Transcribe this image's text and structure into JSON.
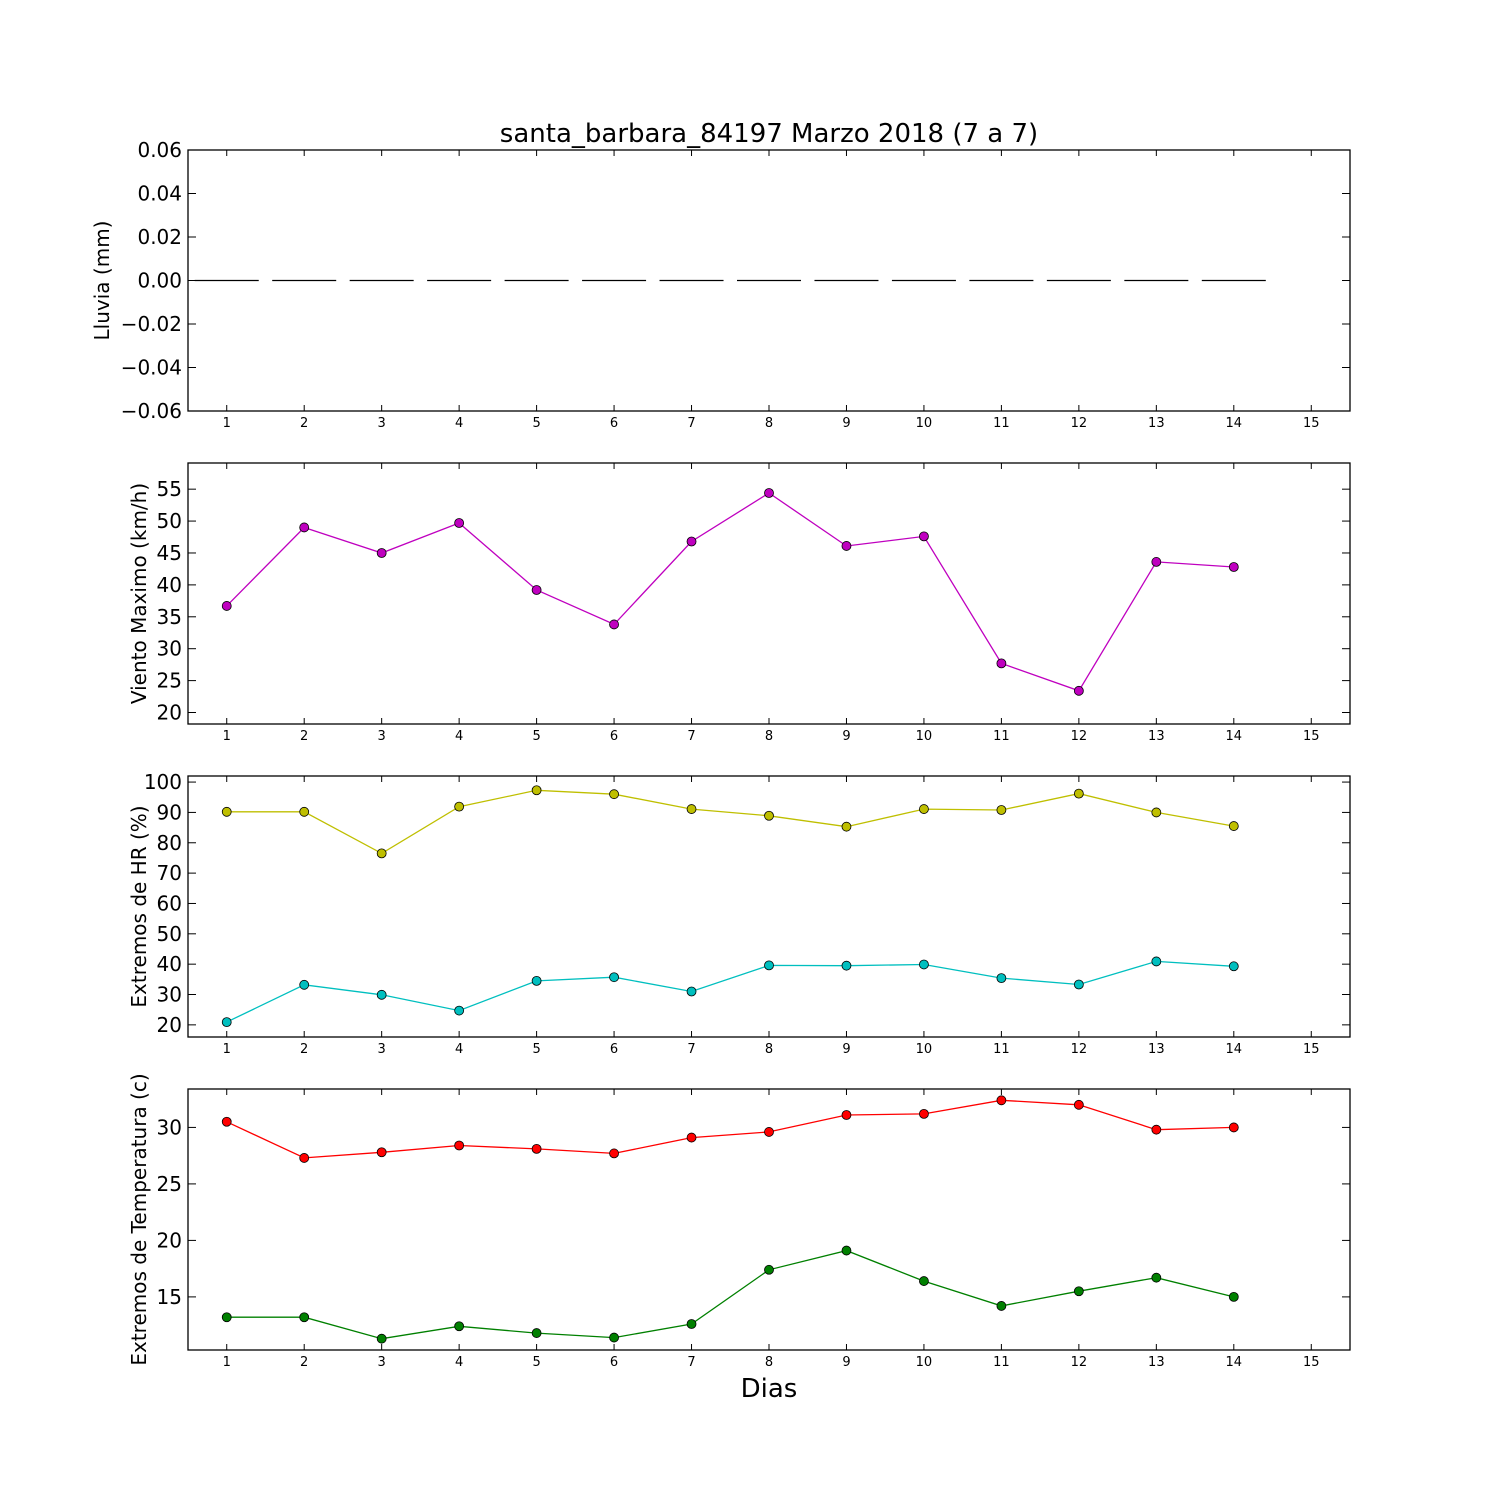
{
  "chart_data": [
    {
      "type": "line",
      "id": "lluvia",
      "title": "santa_barbara_84197 Marzo 2018  (7 a 7)",
      "ylabel": "Lluvia (mm)",
      "xlabel": "",
      "xlim": [
        0.5,
        15.5
      ],
      "ylim": [
        -0.06,
        0.06
      ],
      "yticks": [
        0.06,
        0.04,
        0.02,
        0.0,
        -0.02,
        -0.04,
        -0.06
      ],
      "ytick_labels": [
        "0.06",
        "0.04",
        "0.02",
        "0.00",
        "−0.02",
        "−0.04",
        "−0.06"
      ],
      "xticks": [
        "1",
        "2",
        "3",
        "4",
        "5",
        "6",
        "7",
        "8",
        "9",
        "10",
        "11",
        "12",
        "13",
        "14",
        "15"
      ],
      "style": "bars-zero",
      "series": [
        {
          "color": "#000000",
          "x": [
            1,
            2,
            3,
            4,
            5,
            6,
            7,
            8,
            9,
            10,
            11,
            12,
            13,
            14
          ],
          "values": [
            0,
            0,
            0,
            0,
            0,
            0,
            0,
            0,
            0,
            0,
            0,
            0,
            0,
            0
          ]
        }
      ]
    },
    {
      "type": "line",
      "id": "viento",
      "ylabel": "Viento Maximo (km/h)",
      "xlabel": "",
      "xlim": [
        0.5,
        15.5
      ],
      "ylim": [
        18.2,
        59.1
      ],
      "yticks": [
        20,
        25,
        30,
        35,
        40,
        45,
        50,
        55
      ],
      "ytick_labels": [
        "20",
        "25",
        "30",
        "35",
        "40",
        "45",
        "50",
        "55"
      ],
      "xticks": [
        "1",
        "2",
        "3",
        "4",
        "5",
        "6",
        "7",
        "8",
        "9",
        "10",
        "11",
        "12",
        "13",
        "14",
        "15"
      ],
      "series": [
        {
          "color": "#bf00bf",
          "x": [
            1,
            2,
            3,
            4,
            5,
            6,
            7,
            8,
            9,
            10,
            11,
            12,
            13,
            14
          ],
          "values": [
            36.7,
            49.0,
            45.0,
            49.7,
            39.2,
            33.8,
            46.8,
            54.4,
            46.1,
            47.6,
            27.7,
            23.4,
            43.6,
            42.8
          ]
        }
      ]
    },
    {
      "type": "line",
      "id": "hr",
      "ylabel": "Extremos de HR (%)",
      "xlabel": "",
      "xlim": [
        0.5,
        15.5
      ],
      "ylim": [
        16,
        102
      ],
      "yticks": [
        20,
        30,
        40,
        50,
        60,
        70,
        80,
        90,
        100
      ],
      "ytick_labels": [
        "20",
        "30",
        "40",
        "50",
        "60",
        "70",
        "80",
        "90",
        "100"
      ],
      "xticks": [
        "1",
        "2",
        "3",
        "4",
        "5",
        "6",
        "7",
        "8",
        "9",
        "10",
        "11",
        "12",
        "13",
        "14",
        "15"
      ],
      "series": [
        {
          "color": "#bfbf00",
          "x": [
            1,
            2,
            3,
            4,
            5,
            6,
            7,
            8,
            9,
            10,
            11,
            12,
            13,
            14
          ],
          "values": [
            90.2,
            90.2,
            76.5,
            91.9,
            97.3,
            96.0,
            91.1,
            88.9,
            85.3,
            91.1,
            90.8,
            96.2,
            90.0,
            85.5
          ]
        },
        {
          "color": "#00bfbf",
          "x": [
            1,
            2,
            3,
            4,
            5,
            6,
            7,
            8,
            9,
            10,
            11,
            12,
            13,
            14
          ],
          "values": [
            20.9,
            33.2,
            29.9,
            24.7,
            34.5,
            35.7,
            31.0,
            39.6,
            39.5,
            39.9,
            35.4,
            33.3,
            40.9,
            39.3
          ]
        }
      ]
    },
    {
      "type": "line",
      "id": "temperatura",
      "ylabel": "Extremos de Temperatura (c)",
      "xlabel": "Dias",
      "xlim": [
        0.5,
        15.5
      ],
      "ylim": [
        10.3,
        33.4
      ],
      "yticks": [
        15,
        20,
        25,
        30
      ],
      "ytick_labels": [
        "15",
        "20",
        "25",
        "30"
      ],
      "xticks": [
        "1",
        "2",
        "3",
        "4",
        "5",
        "6",
        "7",
        "8",
        "9",
        "10",
        "11",
        "12",
        "13",
        "14",
        "15"
      ],
      "series": [
        {
          "color": "#ff0000",
          "x": [
            1,
            2,
            3,
            4,
            5,
            6,
            7,
            8,
            9,
            10,
            11,
            12,
            13,
            14
          ],
          "values": [
            30.5,
            27.3,
            27.8,
            28.4,
            28.1,
            27.7,
            29.1,
            29.6,
            31.1,
            31.2,
            32.4,
            32.0,
            29.8,
            30.0
          ]
        },
        {
          "color": "#008000",
          "x": [
            1,
            2,
            3,
            4,
            5,
            6,
            7,
            8,
            9,
            10,
            11,
            12,
            13,
            14
          ],
          "values": [
            13.2,
            13.2,
            11.3,
            12.4,
            11.8,
            11.4,
            12.6,
            17.4,
            19.1,
            16.4,
            14.2,
            15.5,
            16.7,
            15.0
          ]
        }
      ]
    }
  ]
}
